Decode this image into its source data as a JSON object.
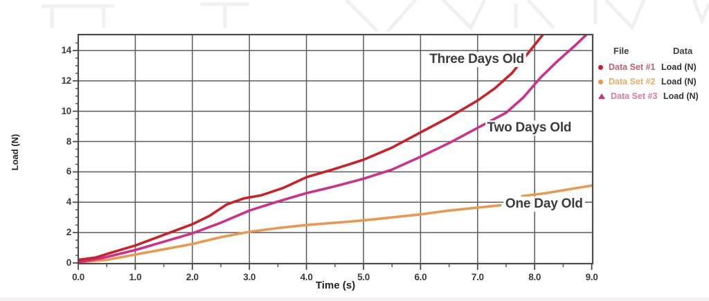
{
  "figure": {
    "x_axis_title": "Time (s)",
    "y_axis_title": "Load (N)"
  },
  "legend": {
    "col_file": "File",
    "col_data": "Data",
    "rows": [
      {
        "name": "Data Set #1",
        "value": "Load (N)",
        "marker": "circle",
        "color": "#cb2026",
        "text_color": "#c2606a"
      },
      {
        "name": "Data Set #2",
        "value": "Load (N)",
        "marker": "circle",
        "color": "#e8994f",
        "text_color": "#e6ac67"
      },
      {
        "name": "Data Set #3",
        "value": "Load (N)",
        "marker": "triangle",
        "color": "#cf2f87",
        "text_color": "#d67ba4"
      }
    ]
  },
  "chart_data": {
    "type": "line",
    "title": "",
    "xlabel": "Time (s)",
    "ylabel": "Load (N)",
    "xlim": [
      0,
      9.02
    ],
    "ylim": [
      0,
      15.1
    ],
    "grid": true,
    "x_ticks": [
      0,
      1,
      2,
      3,
      4,
      5,
      6,
      7,
      8,
      9
    ],
    "x_tick_labels": [
      "0.0",
      "1.0",
      "2.0",
      "3.0",
      "4.0",
      "5.0",
      "6.0",
      "7.0",
      "8.0",
      "9.0"
    ],
    "y_ticks": [
      0,
      2,
      4,
      6,
      8,
      10,
      12,
      14
    ],
    "y_tick_labels": [
      "0",
      "2",
      "4",
      "6",
      "8",
      "10",
      "12",
      "14"
    ],
    "series": [
      {
        "name": "One Day Old",
        "legend_label": "Data Set #2",
        "color": "#e8994f",
        "marker": "circle",
        "segments": [
          [
            [
              0,
              0.05
            ],
            [
              0.5,
              0.2
            ],
            [
              1,
              0.55
            ],
            [
              1.5,
              0.9
            ],
            [
              2,
              1.25
            ],
            [
              2.5,
              1.7
            ],
            [
              3,
              2.05
            ],
            [
              3.5,
              2.3
            ],
            [
              4,
              2.5
            ],
            [
              4.5,
              2.65
            ],
            [
              5,
              2.8
            ],
            [
              5.5,
              3.0
            ],
            [
              6,
              3.2
            ],
            [
              6.5,
              3.45
            ],
            [
              7,
              3.65
            ],
            [
              7.4,
              3.8
            ]
          ],
          [
            [
              7.78,
              4.4
            ],
            [
              8.2,
              4.6
            ],
            [
              8.6,
              4.85
            ],
            [
              9,
              5.1
            ]
          ]
        ]
      },
      {
        "name": "Two Days Old",
        "legend_label": "Data Set #3",
        "color": "#cf2f87",
        "marker": "triangle",
        "segments": [
          [
            [
              0,
              0.05
            ],
            [
              0.4,
              0.3
            ],
            [
              1,
              0.85
            ],
            [
              1.5,
              1.4
            ],
            [
              2,
              1.95
            ],
            [
              2.5,
              2.65
            ],
            [
              3,
              3.45
            ],
            [
              3.5,
              4.05
            ],
            [
              4,
              4.6
            ],
            [
              4.5,
              5.05
            ],
            [
              5,
              5.55
            ],
            [
              5.5,
              6.15
            ],
            [
              6,
              7.0
            ],
            [
              6.5,
              7.9
            ],
            [
              7,
              8.9
            ],
            [
              7.5,
              9.9
            ],
            [
              7.8,
              10.9
            ],
            [
              8.1,
              12.2
            ],
            [
              8.4,
              13.3
            ],
            [
              8.7,
              14.3
            ],
            [
              8.95,
              15.2
            ]
          ]
        ]
      },
      {
        "name": "Three Days Old",
        "legend_label": "Data Set #1",
        "color": "#cb2026",
        "marker": "circle",
        "segments": [
          [
            [
              0,
              0.2
            ],
            [
              0.3,
              0.35
            ],
            [
              0.6,
              0.7
            ],
            [
              1,
              1.15
            ],
            [
              1.5,
              1.85
            ],
            [
              2,
              2.55
            ],
            [
              2.3,
              3.1
            ],
            [
              2.6,
              3.85
            ],
            [
              2.9,
              4.25
            ],
            [
              3.2,
              4.45
            ],
            [
              3.6,
              4.95
            ],
            [
              4,
              5.65
            ],
            [
              4.5,
              6.2
            ],
            [
              5,
              6.8
            ],
            [
              5.5,
              7.6
            ],
            [
              6,
              8.6
            ],
            [
              6.5,
              9.6
            ],
            [
              7,
              10.7
            ],
            [
              7.3,
              11.5
            ],
            [
              7.6,
              12.5
            ],
            [
              7.9,
              13.9
            ],
            [
              8.05,
              14.6
            ],
            [
              8.2,
              15.3
            ]
          ]
        ]
      }
    ],
    "annotations": [
      {
        "text": "Three Days Old",
        "x": 6.12,
        "y": 13.35
      },
      {
        "text": "Two Days Old",
        "x": 7.13,
        "y": 8.85
      },
      {
        "text": "One Day Old",
        "x": 7.45,
        "y": 3.82
      }
    ]
  }
}
